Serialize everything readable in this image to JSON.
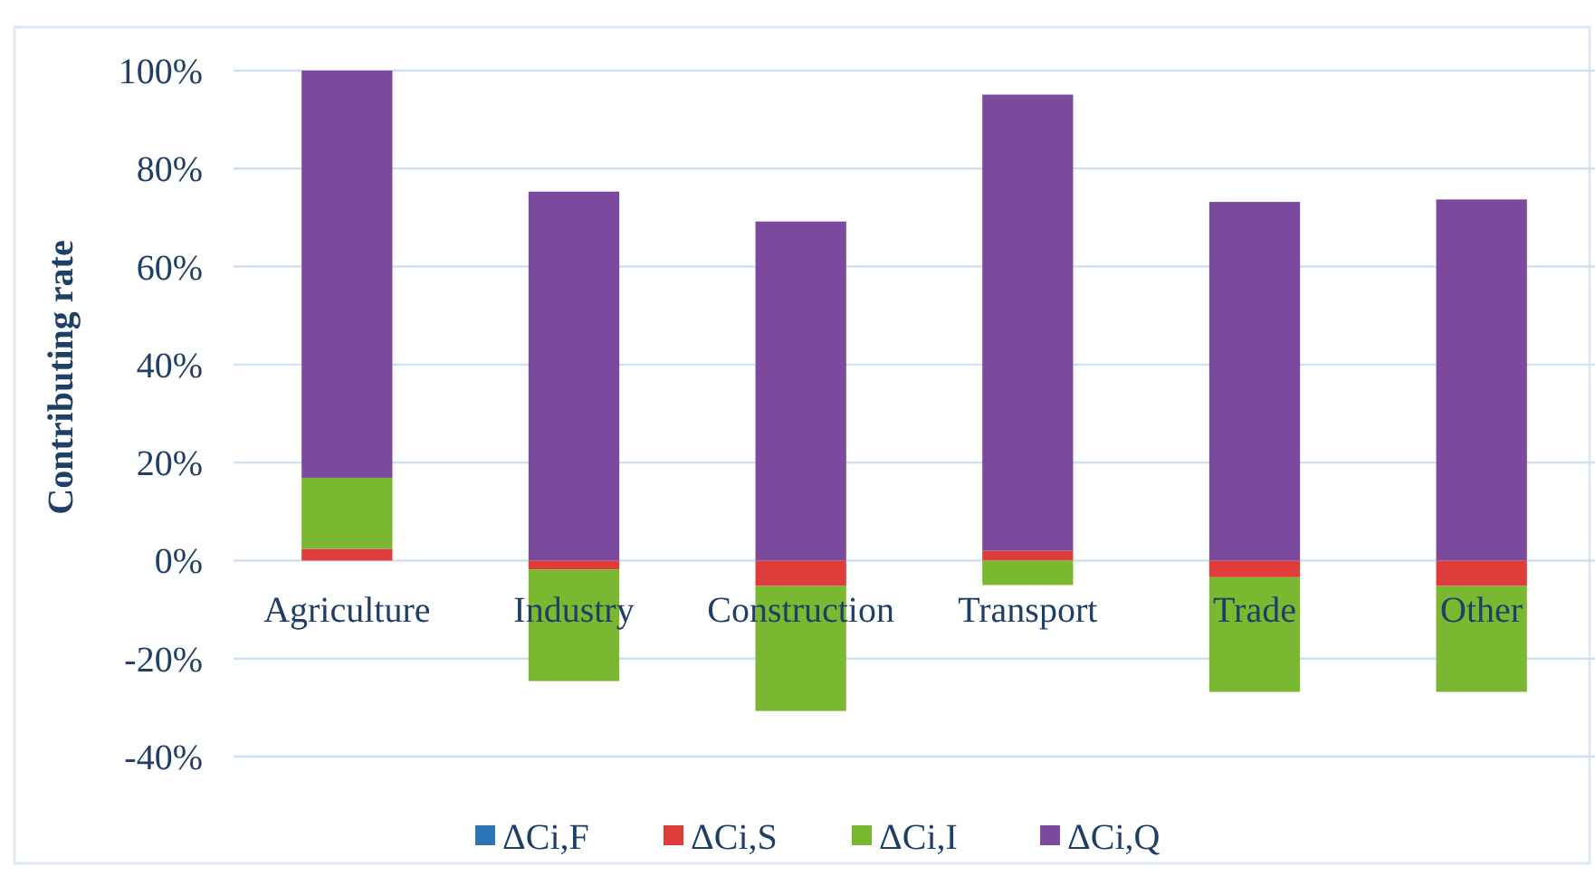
{
  "chart_data": {
    "type": "bar",
    "stacked": true,
    "ylabel": "Contributing rate",
    "categories": [
      "Agriculture",
      "Industry",
      "Construction",
      "Transport",
      "Trade",
      "Other"
    ],
    "series": [
      {
        "name": "ΔCi,F",
        "color": "#2e75b6",
        "values": [
          0,
          0,
          0,
          0,
          0,
          0
        ]
      },
      {
        "name": "ΔCi,S",
        "color": "#e03c3c",
        "values": [
          2.4,
          -1.8,
          -5.2,
          2,
          -3.4,
          -5.2
        ]
      },
      {
        "name": "ΔCi,I",
        "color": "#7ab832",
        "values": [
          14.5,
          -22.8,
          -25.5,
          -5,
          -23.4,
          -21.6
        ]
      },
      {
        "name": "ΔCi,Q",
        "color": "#7b4a9c",
        "values": [
          83.1,
          75.3,
          69.2,
          93.1,
          73.2,
          73.7
        ]
      }
    ],
    "ylim": [
      -40,
      100
    ],
    "yticks": [
      {
        "value": -40,
        "label": "-40%"
      },
      {
        "value": -20,
        "label": "-20%"
      },
      {
        "value": 0,
        "label": "0%"
      },
      {
        "value": 20,
        "label": "20%"
      },
      {
        "value": 40,
        "label": "40%"
      },
      {
        "value": 60,
        "label": "60%"
      },
      {
        "value": 80,
        "label": "80%"
      },
      {
        "value": 100,
        "label": "100%"
      }
    ],
    "grid": "y",
    "legend": "bottom"
  }
}
